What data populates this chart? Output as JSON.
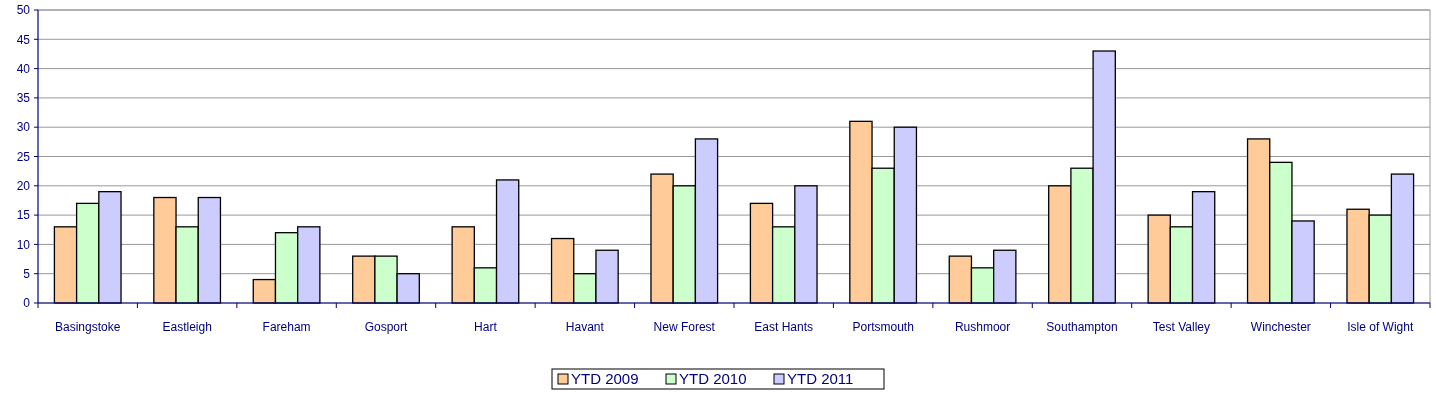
{
  "chart_data": {
    "type": "bar",
    "categories": [
      "Basingstoke",
      "Eastleigh",
      "Fareham",
      "Gosport",
      "Hart",
      "Havant",
      "New Forest",
      "East Hants",
      "Portsmouth",
      "Rushmoor",
      "Southampton",
      "Test Valley",
      "Winchester",
      "Isle of Wight"
    ],
    "series": [
      {
        "name": "YTD 2009",
        "color": "#ffcc99",
        "values": [
          13,
          18,
          4,
          8,
          13,
          11,
          22,
          17,
          31,
          8,
          20,
          15,
          28,
          16
        ]
      },
      {
        "name": "YTD 2010",
        "color": "#ccffcc",
        "values": [
          17,
          13,
          12,
          8,
          6,
          5,
          20,
          13,
          23,
          6,
          23,
          13,
          24,
          15
        ]
      },
      {
        "name": "YTD 2011",
        "color": "#ccccff",
        "values": [
          19,
          18,
          13,
          5,
          21,
          9,
          28,
          20,
          30,
          9,
          43,
          19,
          14,
          22
        ]
      }
    ],
    "ylim": [
      0,
      50
    ],
    "yticks": [
      0,
      5,
      10,
      15,
      20,
      25,
      30,
      35,
      40,
      45,
      50
    ],
    "grid": "y",
    "legend": "bottom"
  }
}
